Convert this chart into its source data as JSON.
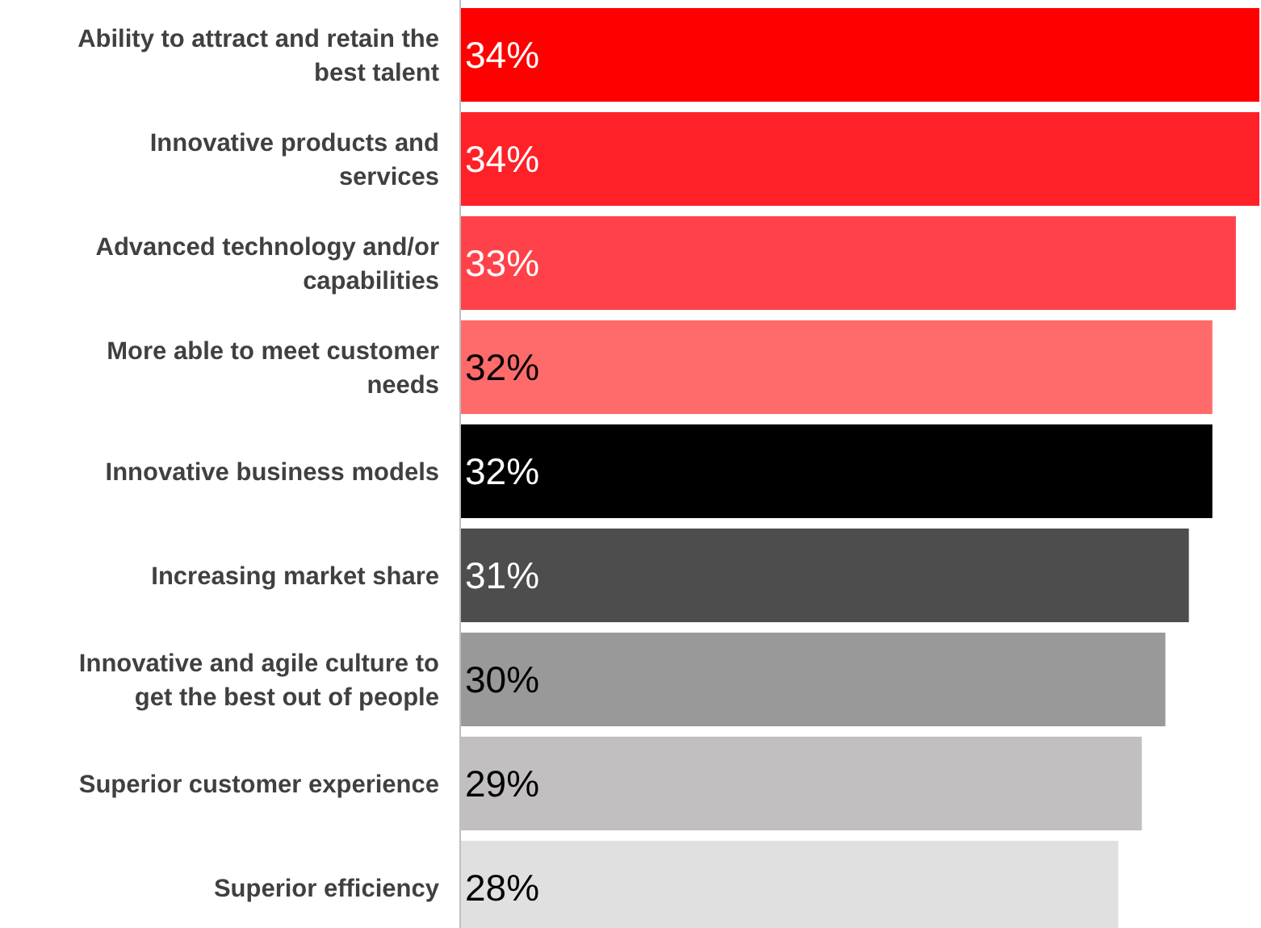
{
  "chart_data": {
    "type": "bar",
    "orientation": "horizontal",
    "value_labels": [
      "34%",
      "34%",
      "33%",
      "32%",
      "32%",
      "31%",
      "30%",
      "29%",
      "28%"
    ],
    "categories": [
      "Ability to attract and retain the best talent",
      "Innovative products and services",
      "Advanced technology and/or capabilities",
      "More able to meet customer needs",
      "Innovative business models",
      "Increasing market share",
      "Innovative and agile culture to get the best out of people",
      "Superior customer experience",
      "Superior efficiency"
    ],
    "values": [
      34,
      34,
      33,
      32,
      32,
      31,
      30,
      29,
      28
    ],
    "colors": [
      "#ff0000",
      "#ff2128",
      "#ff4249",
      "#ff6b6b",
      "#000000",
      "#4d4d4d",
      "#999999",
      "#c1bfbf",
      "#e0e0e0"
    ]
  }
}
